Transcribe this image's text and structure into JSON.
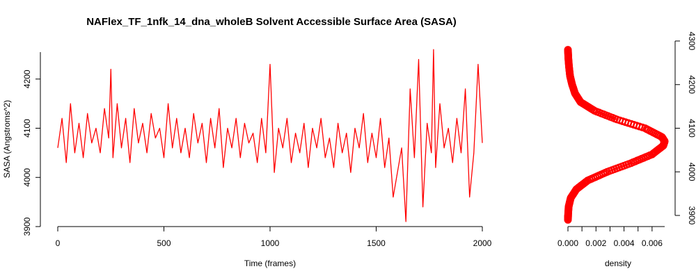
{
  "chart_data": [
    {
      "type": "line",
      "title": "NAFlex_TF_1nfk_14_dna_wholeB Solvent Accessible Surface Area (SASA)",
      "xlabel": "Time (frames)",
      "ylabel": "SASA (Angstroms^2)",
      "xlim": [
        0,
        2000
      ],
      "ylim": [
        3900,
        4300
      ],
      "x_ticks": [
        "0",
        "500",
        "1000",
        "1500",
        "2000"
      ],
      "y_ticks": [
        "3900",
        "4000",
        "4100",
        "4200"
      ],
      "color": "#ff0000",
      "series": [
        {
          "x": [
            0,
            20,
            40,
            60,
            80,
            100,
            120,
            140,
            160,
            180,
            200,
            220,
            240,
            250,
            260,
            280,
            300,
            320,
            340,
            360,
            380,
            400,
            420,
            440,
            460,
            480,
            500,
            520,
            540,
            560,
            580,
            600,
            620,
            640,
            660,
            680,
            700,
            720,
            740,
            760,
            780,
            800,
            820,
            840,
            860,
            880,
            900,
            920,
            940,
            960,
            980,
            1000,
            1020,
            1040,
            1060,
            1080,
            1100,
            1120,
            1140,
            1160,
            1180,
            1200,
            1220,
            1240,
            1260,
            1280,
            1300,
            1320,
            1340,
            1360,
            1380,
            1400,
            1420,
            1440,
            1460,
            1480,
            1500,
            1520,
            1540,
            1560,
            1580,
            1600,
            1620,
            1640,
            1660,
            1680,
            1700,
            1720,
            1740,
            1760,
            1770,
            1780,
            1800,
            1820,
            1840,
            1860,
            1880,
            1900,
            1920,
            1940,
            1960,
            1980,
            2000
          ],
          "values": [
            4060,
            4120,
            4030,
            4150,
            4050,
            4110,
            4040,
            4130,
            4070,
            4100,
            4050,
            4140,
            4080,
            4220,
            4040,
            4150,
            4060,
            4120,
            4030,
            4140,
            4070,
            4110,
            4050,
            4130,
            4080,
            4100,
            4040,
            4150,
            4060,
            4120,
            4050,
            4100,
            4040,
            4130,
            4070,
            4110,
            4030,
            4120,
            4060,
            4140,
            4020,
            4100,
            4060,
            4120,
            4040,
            4110,
            4070,
            4090,
            4030,
            4120,
            4050,
            4230,
            4010,
            4100,
            4060,
            4120,
            4030,
            4090,
            4050,
            4110,
            4020,
            4100,
            4060,
            4120,
            4040,
            4080,
            4020,
            4110,
            4050,
            4090,
            4010,
            4100,
            4060,
            4130,
            4030,
            4090,
            4040,
            4120,
            4020,
            4080,
            3960,
            4010,
            4060,
            3910,
            4180,
            4040,
            4240,
            3940,
            4110,
            4050,
            4260,
            4020,
            4150,
            4060,
            4100,
            4030,
            4120,
            4050,
            4180,
            3960,
            4050,
            4230,
            4070
          ]
        }
      ]
    },
    {
      "type": "line",
      "title": "",
      "xlabel": "density",
      "ylabel": "",
      "xlim": [
        0,
        0.0069
      ],
      "ylim": [
        3900,
        4300
      ],
      "x_ticks": [
        "0.000",
        "0.002",
        "0.004",
        "0.006"
      ],
      "y_ticks": [
        "3900",
        "4000",
        "4100",
        "4200",
        "4300"
      ],
      "color": "#ff0000",
      "series": [
        {
          "y": [
            3890,
            3900,
            3920,
            3940,
            3960,
            3980,
            4000,
            4020,
            4040,
            4060,
            4070,
            4080,
            4100,
            4120,
            4140,
            4160,
            4180,
            4200,
            4220,
            4240,
            4260,
            4280
          ],
          "values": [
            0.0,
            1e-05,
            5e-05,
            0.0002,
            0.0006,
            0.0014,
            0.0028,
            0.0045,
            0.006,
            0.0068,
            0.0069,
            0.0067,
            0.0055,
            0.0035,
            0.0019,
            0.0009,
            0.0005,
            0.0003,
            0.00015,
            8e-05,
            3e-05,
            0.0
          ]
        }
      ]
    }
  ]
}
